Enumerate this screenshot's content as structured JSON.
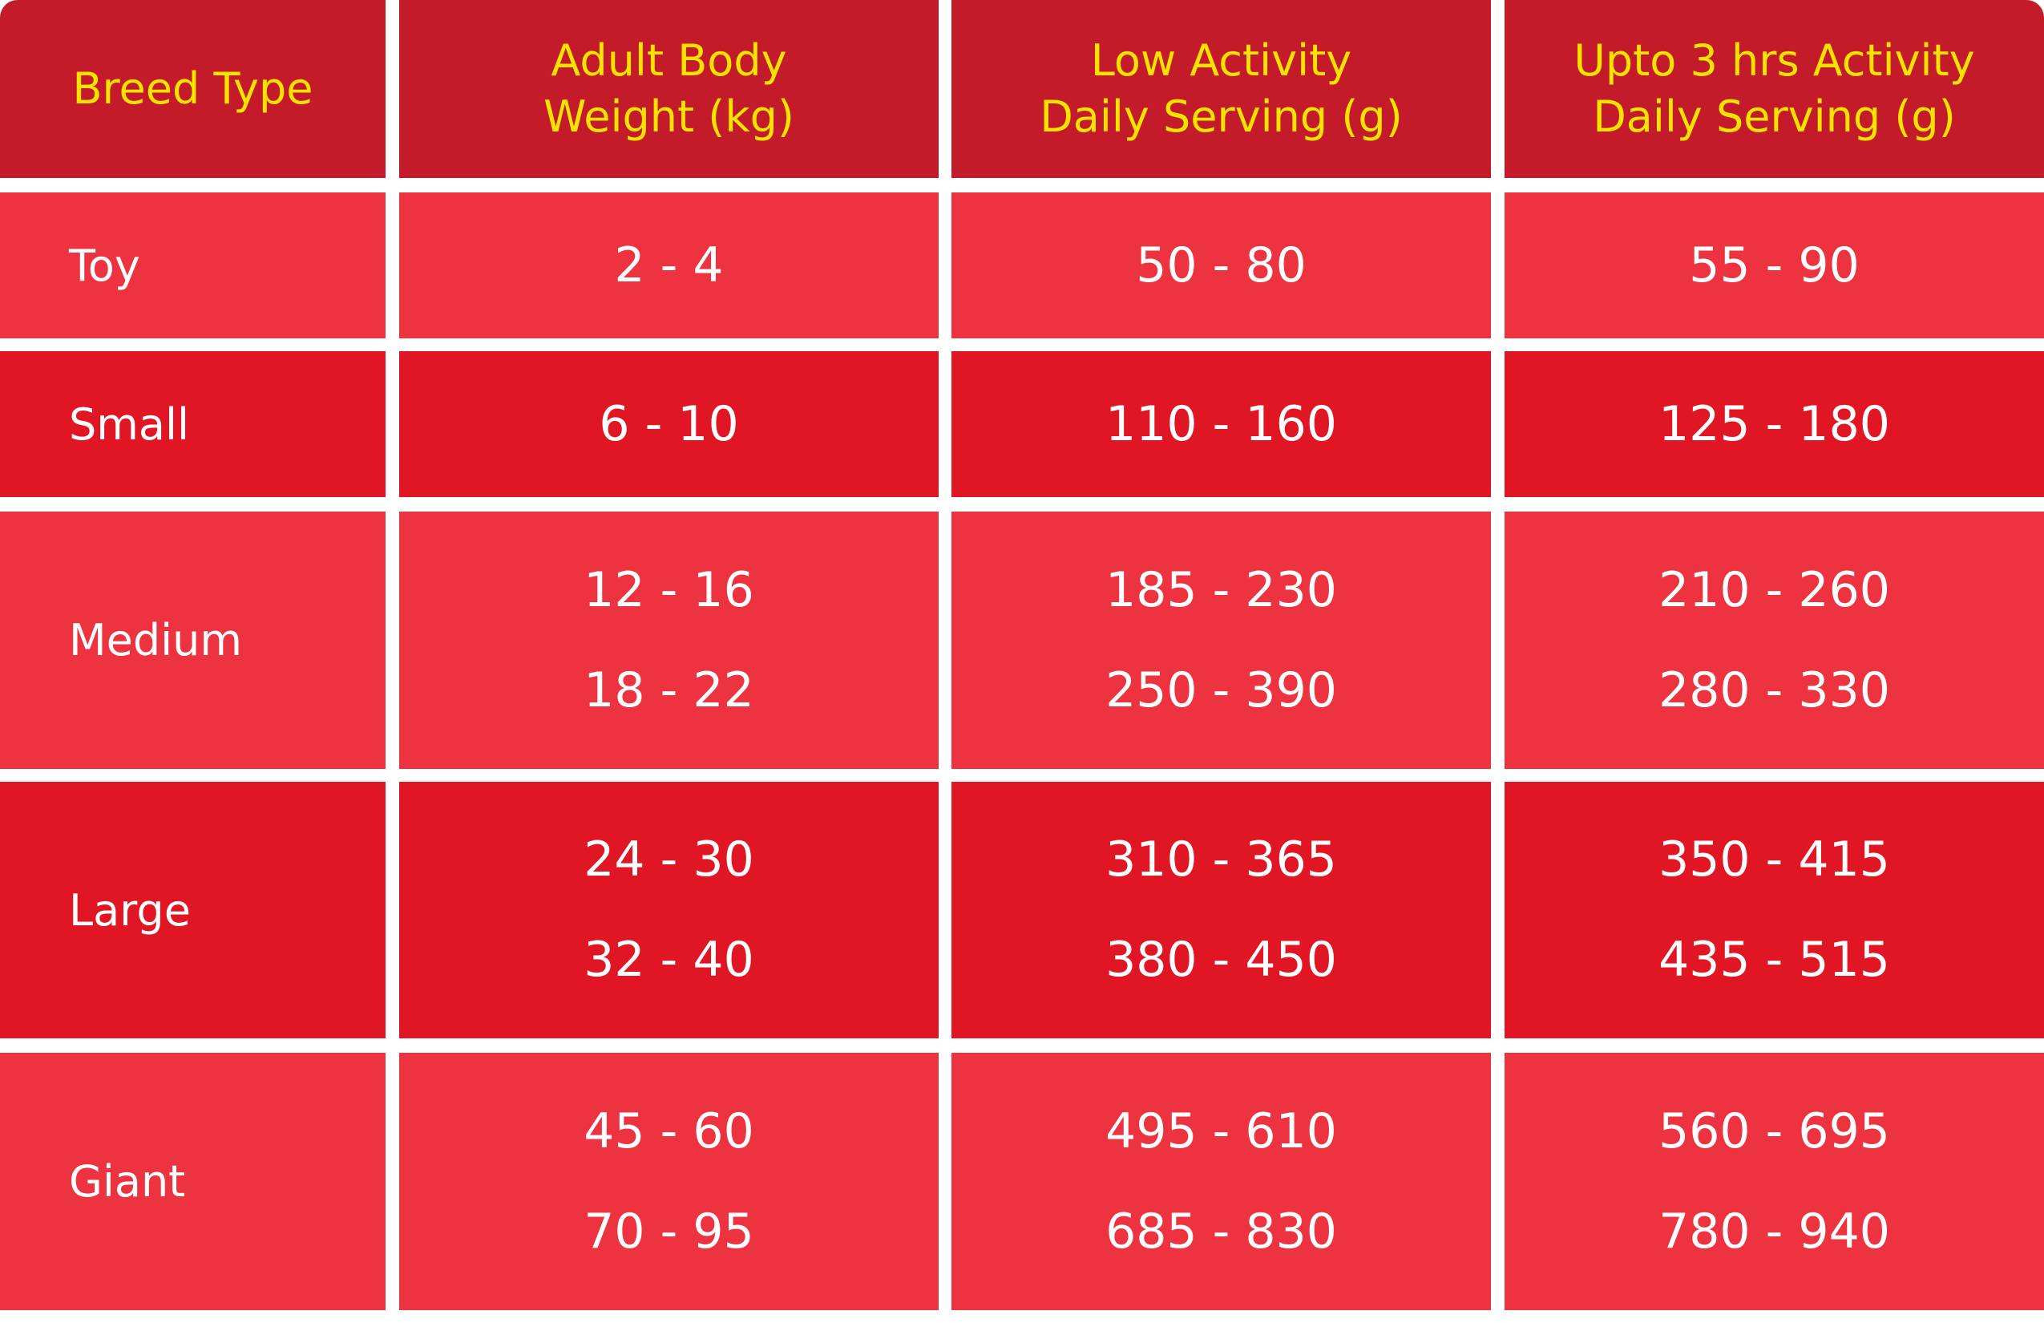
{
  "table": {
    "header": [
      [
        "Breed Type"
      ],
      [
        "Adult Body",
        "Weight (kg)"
      ],
      [
        "Low Activity",
        "Daily Serving (g)"
      ],
      [
        "Upto 3 hrs Activity",
        "Daily Serving (g)"
      ]
    ],
    "rows": [
      {
        "breed": "Toy",
        "values": [
          [
            "2 - 4"
          ],
          [
            "50 - 80"
          ],
          [
            "55 - 90"
          ]
        ]
      },
      {
        "breed": "Small",
        "values": [
          [
            "6 - 10"
          ],
          [
            "110 - 160"
          ],
          [
            "125 - 180"
          ]
        ]
      },
      {
        "breed": "Medium",
        "values": [
          [
            "12 - 16",
            "18 - 22"
          ],
          [
            "185 - 230",
            "250 - 390"
          ],
          [
            "210 - 260",
            "280 - 330"
          ]
        ]
      },
      {
        "breed": "Large",
        "values": [
          [
            "24 - 30",
            "32 - 40"
          ],
          [
            "310 - 365",
            "380 - 450"
          ],
          [
            "350 - 415",
            "435 - 515"
          ]
        ]
      },
      {
        "breed": "Giant",
        "values": [
          [
            "45 - 60",
            "70 - 95"
          ],
          [
            "495 - 610",
            "685 - 830"
          ],
          [
            "560 - 695",
            "780 - 940"
          ]
        ]
      }
    ]
  }
}
